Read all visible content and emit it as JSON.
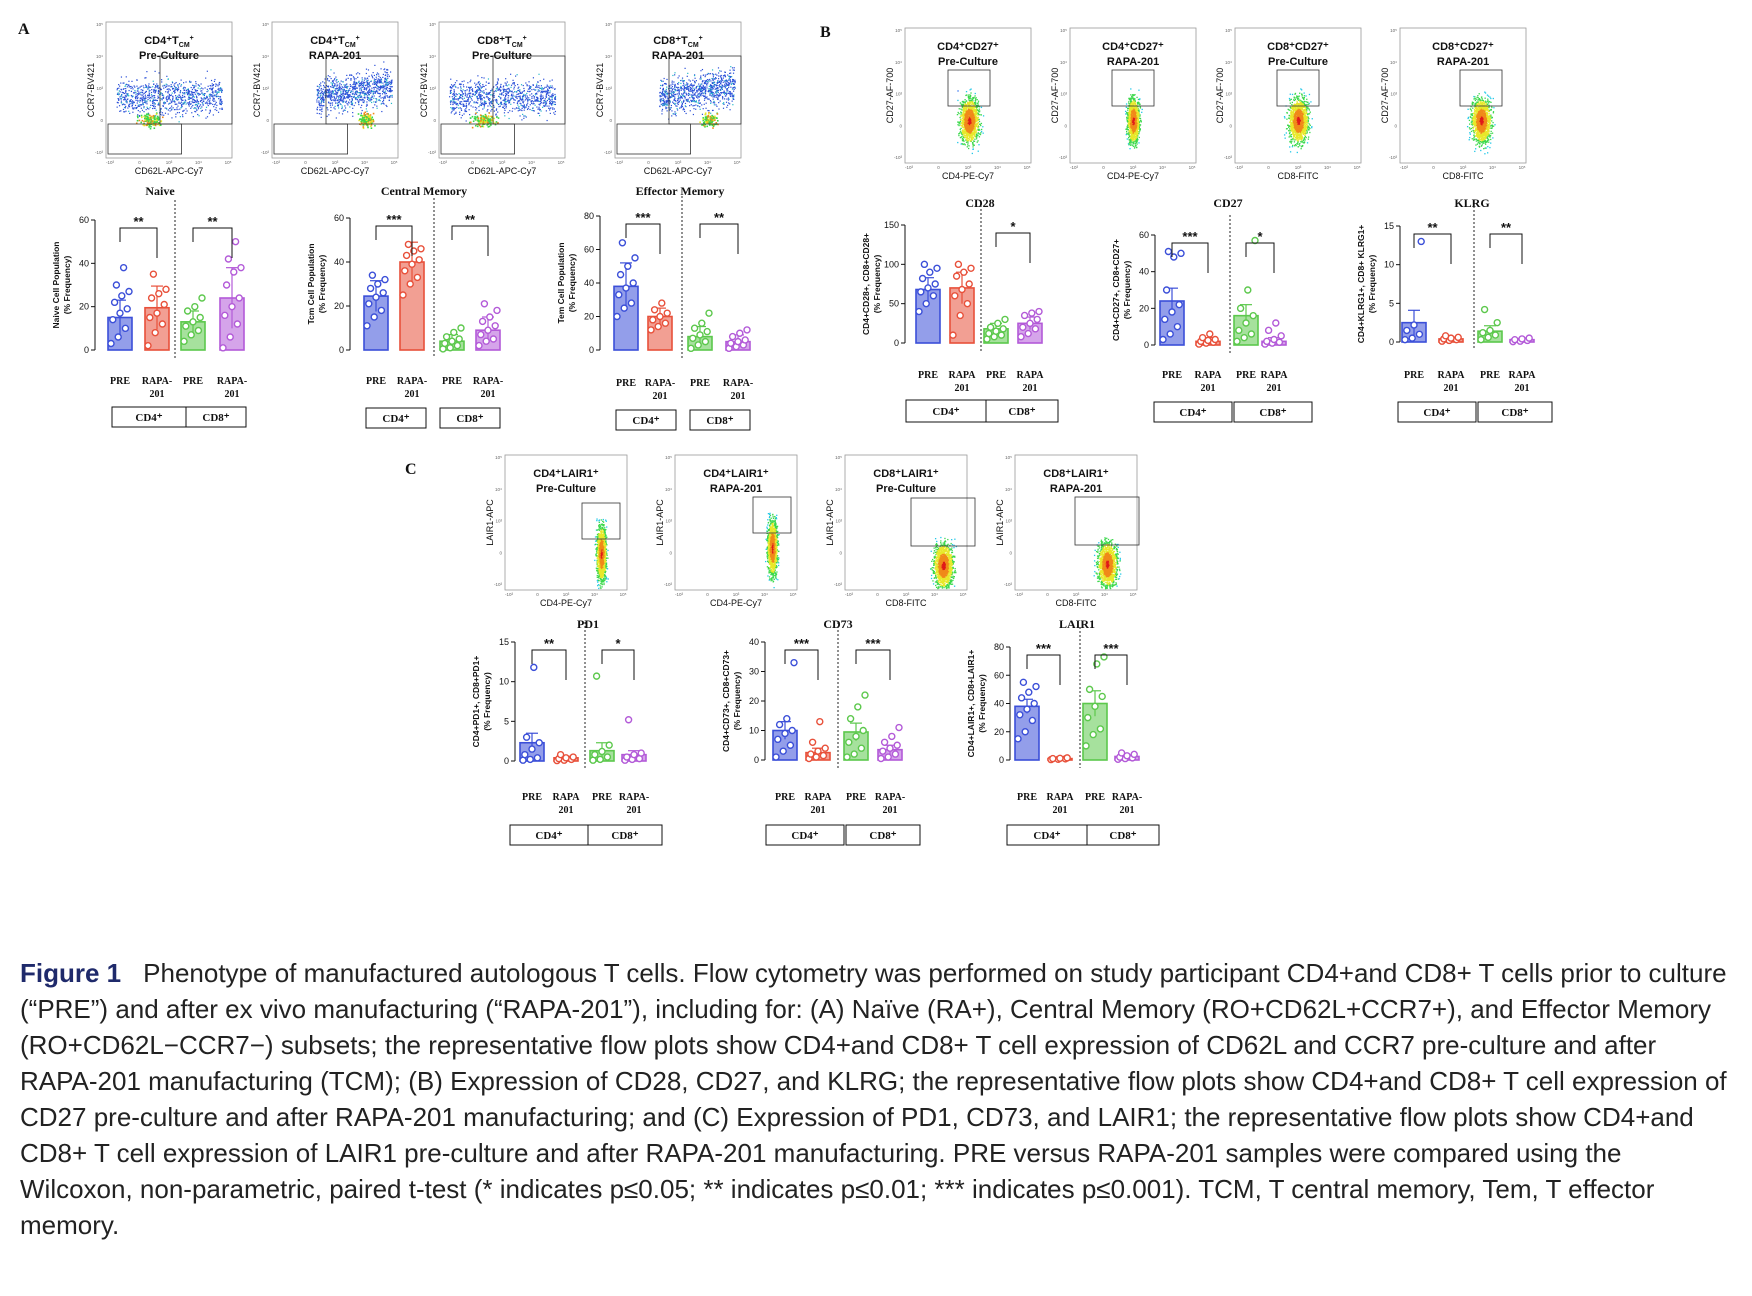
{
  "figure_label": "Figure 1",
  "caption_text": "Phenotype of manufactured autologous T cells. Flow cytometry was performed on study participant CD4+and CD8+ T cells prior to culture (“PRE”) and after ex vivo manufacturing (“RAPA-201”), including for: (A)  Naïve (RA+), Central Memory (RO+CD62L+CCR7+), and Effector Memory (RO+CD62L−CCR7−) subsets; the representative flow plots show CD4+and CD8+ T cell expression of CD62L and CCR7 pre-culture and after RAPA-201 manufacturing (TCM); (B)  Expression of CD28, CD27, and KLRG; the representative flow plots show CD4+and CD8+ T cell expression of CD27 pre-culture and after RAPA-201 manufacturing; and (C)  Expression of PD1, CD73, and LAIR1; the representative flow plots show CD4+and CD8+ T cell expression of LAIR1 pre-culture and after RAPA-201 manufacturing. PRE versus RAPA-201 samples were compared using the Wilcoxon, non-parametric, paired t-test (* indicates p≤0.05; ** indicates p≤0.01; *** indicates p≤0.001). TCM, T central memory, Tem, T effector memory.",
  "colors": {
    "cd4_pre": "#3b4fd8",
    "cd4_rapa": "#e8503a",
    "cd8_pre": "#5cc84c",
    "cd8_rapa": "#b35ad8"
  },
  "panels": [
    {
      "letter": "A",
      "flow": [
        {
          "title1": "CD4⁺T",
          "title_sub": "CM",
          "title_sup": "+",
          "title2": "Pre-Culture",
          "xlabel": "CD62L-APC-Cy7",
          "ylabel": "CCR7-BV421"
        },
        {
          "title1": "CD4⁺T",
          "title_sub": "CM",
          "title_sup": "+",
          "title2": "RAPA-201",
          "xlabel": "CD62L-APC-Cy7",
          "ylabel": "CCR7-BV421"
        },
        {
          "title1": "CD8⁺T",
          "title_sub": "CM",
          "title_sup": "+",
          "title2": "Pre-Culture",
          "xlabel": "CD62L-APC-Cy7",
          "ylabel": "CCR7-BV421"
        },
        {
          "title1": "CD8⁺T",
          "title_sub": "CM",
          "title_sup": "+",
          "title2": "RAPA-201",
          "xlabel": "CD62L-APC-Cy7",
          "ylabel": "CCR7-BV421"
        }
      ]
    },
    {
      "letter": "B",
      "flow": [
        {
          "title1": "CD4⁺CD27⁺",
          "title2": "Pre-Culture",
          "xlabel": "CD4-PE-Cy7",
          "ylabel": "CD27-AF-700"
        },
        {
          "title1": "CD4⁺CD27⁺",
          "title2": "RAPA-201",
          "xlabel": "CD4-PE-Cy7",
          "ylabel": "CD27-AF-700"
        },
        {
          "title1": "CD8⁺CD27⁺",
          "title2": "Pre-Culture",
          "xlabel": "CD8-FITC",
          "ylabel": "CD27-AF-700"
        },
        {
          "title1": "CD8⁺CD27⁺",
          "title2": "RAPA-201",
          "xlabel": "CD8-FITC",
          "ylabel": "CD27-AF-700"
        }
      ]
    },
    {
      "letter": "C",
      "flow": [
        {
          "title1": "CD4⁺LAIR1⁺",
          "title2": "Pre-Culture",
          "xlabel": "CD4-PE-Cy7",
          "ylabel": "LAIR1-APC"
        },
        {
          "title1": "CD4⁺LAIR1⁺",
          "title2": "RAPA-201",
          "xlabel": "CD4-PE-Cy7",
          "ylabel": "LAIR1-APC"
        },
        {
          "title1": "CD8⁺LAIR1⁺",
          "title2": "Pre-Culture",
          "xlabel": "CD8-FITC",
          "ylabel": "LAIR1-APC"
        },
        {
          "title1": "CD8⁺LAIR1⁺",
          "title2": "RAPA-201",
          "xlabel": "CD8-FITC",
          "ylabel": "LAIR1-APC"
        }
      ]
    }
  ],
  "flow_axis_ticks": [
    "-10³",
    "0",
    "10³",
    "10⁴",
    "10⁵"
  ],
  "group_labels": [
    "CD4⁺",
    "CD8⁺"
  ],
  "chart_data": [
    {
      "type": "bar",
      "title": "Naive",
      "ylabel": "Naive Cell Population (% Frequency)",
      "ylim": [
        0,
        60
      ],
      "yticks": [
        0,
        20,
        40,
        60
      ],
      "categories": [
        "PRE",
        "RAPA-201",
        "PRE",
        "RAPA-201"
      ],
      "values": [
        15,
        19.5,
        13,
        24
      ],
      "errors": [
        8,
        10,
        5,
        14
      ],
      "points": [
        [
          3,
          6,
          10,
          14,
          17,
          19,
          22,
          25,
          27,
          30,
          38
        ],
        [
          2,
          8,
          12,
          15,
          17,
          21,
          24,
          26,
          28,
          35
        ],
        [
          4,
          7,
          9,
          11,
          13,
          15,
          18,
          20,
          24
        ],
        [
          1,
          6,
          12,
          16,
          20,
          24,
          30,
          36,
          38,
          42,
          50
        ]
      ],
      "significance": [
        "**",
        "**"
      ]
    },
    {
      "type": "bar",
      "title": "Central Memory",
      "ylabel": "Tcm Cell Population (% Frequency)",
      "ylim": [
        0,
        60
      ],
      "yticks": [
        0,
        20,
        40,
        60
      ],
      "categories": [
        "PRE",
        "RAPA-201",
        "PRE",
        "RAPA-201"
      ],
      "values": [
        24.5,
        40,
        4,
        9
      ],
      "errors": [
        7,
        9,
        3,
        6
      ],
      "points": [
        [
          11,
          15,
          18,
          21,
          24,
          26,
          28,
          30,
          32,
          34
        ],
        [
          25,
          30,
          33,
          36,
          39,
          41,
          43,
          45,
          46,
          48
        ],
        [
          0.5,
          1,
          2,
          3,
          4,
          5,
          6,
          8,
          10
        ],
        [
          2,
          4,
          5,
          7,
          9,
          11,
          13,
          15,
          18,
          21
        ]
      ],
      "significance": [
        "***",
        "**"
      ]
    },
    {
      "type": "bar",
      "title": "Effector Memory",
      "ylabel": "Tem Cell Population (% Frequency)",
      "ylim": [
        0,
        80
      ],
      "yticks": [
        0,
        20,
        40,
        60,
        80
      ],
      "categories": [
        "PRE",
        "RAPA-201",
        "PRE",
        "RAPA-201"
      ],
      "values": [
        38,
        20,
        8,
        5
      ],
      "errors": [
        14,
        5,
        6,
        4
      ],
      "points": [
        [
          20,
          25,
          28,
          33,
          37,
          40,
          45,
          50,
          55,
          64
        ],
        [
          12,
          14,
          16,
          18,
          20,
          22,
          24,
          28
        ],
        [
          1,
          3,
          5,
          7,
          9,
          11,
          13,
          16,
          22
        ],
        [
          1,
          2,
          3,
          4,
          5,
          6,
          8,
          10,
          12
        ]
      ],
      "significance": [
        "***",
        "**"
      ]
    },
    {
      "type": "bar",
      "title": "CD28",
      "ylabel": "CD4+CD28+, CD8+CD28+ (% Frequency)",
      "ylim": [
        0,
        150
      ],
      "yticks": [
        0,
        50,
        100,
        150
      ],
      "categories": [
        "PRE",
        "RAPA 201",
        "PRE",
        "RAPA 201"
      ],
      "values": [
        68,
        70,
        18,
        25
      ],
      "errors": [
        15,
        20,
        7,
        8
      ],
      "points": [
        [
          40,
          50,
          60,
          65,
          70,
          75,
          82,
          90,
          95,
          100
        ],
        [
          10,
          35,
          50,
          60,
          68,
          75,
          85,
          90,
          95,
          100
        ],
        [
          5,
          8,
          10,
          12,
          15,
          18,
          20,
          25,
          30
        ],
        [
          8,
          12,
          18,
          20,
          25,
          30,
          35,
          38,
          40
        ]
      ],
      "significance": [
        "",
        "*"
      ]
    },
    {
      "type": "bar",
      "title": "CD27",
      "ylabel": "CD4+CD27+, CD8+CD27+ (% Frequency)",
      "ylim": [
        0,
        60
      ],
      "yticks": [
        0,
        20,
        40,
        60
      ],
      "categories": [
        "PRE",
        "RAPA 201",
        "PRE",
        "RAPA 201"
      ],
      "values": [
        24,
        2,
        16,
        2
      ],
      "errors": [
        7,
        2,
        6,
        2
      ],
      "points": [
        [
          3,
          6,
          10,
          14,
          18,
          22,
          30,
          48,
          50,
          51
        ],
        [
          0.5,
          1,
          1.5,
          2,
          2.5,
          3,
          4,
          6
        ],
        [
          2,
          4,
          6,
          8,
          12,
          16,
          20,
          30,
          57
        ],
        [
          0.5,
          1,
          1.5,
          2,
          3,
          5,
          8,
          12
        ]
      ],
      "significance": [
        "***",
        "*"
      ]
    },
    {
      "type": "bar",
      "title": "KLRG",
      "ylabel": "CD4+KLRG1+, CD8+ KLRG1+ (% Frequency)",
      "ylim": [
        0,
        15
      ],
      "yticks": [
        0,
        5,
        10,
        15
      ],
      "categories": [
        "PRE",
        "RAPA 201",
        "PRE",
        "RAPA 201"
      ],
      "values": [
        2.5,
        0.4,
        1.4,
        0.3
      ],
      "errors": [
        1.6,
        0.2,
        0.7,
        0.15
      ],
      "points": [
        [
          0.3,
          0.5,
          1,
          1.5,
          2.2,
          13
        ],
        [
          0.1,
          0.2,
          0.3,
          0.4,
          0.5,
          0.6,
          0.8
        ],
        [
          0.3,
          0.6,
          0.9,
          1.2,
          1.5,
          2.5,
          4.2
        ],
        [
          0.05,
          0.1,
          0.2,
          0.3,
          0.4,
          0.5
        ]
      ],
      "significance": [
        "**",
        "**"
      ]
    },
    {
      "type": "bar",
      "title": "PD1",
      "ylabel": "CD4+PD1+, CD8+PD1+ (% Frequency)",
      "ylim": [
        0,
        15
      ],
      "yticks": [
        0,
        5,
        10,
        15
      ],
      "categories": [
        "PRE",
        "RAPA 201",
        "PRE",
        "RAPA-201"
      ],
      "values": [
        2.3,
        0.4,
        1.3,
        0.8
      ],
      "errors": [
        1.2,
        0.2,
        1.0,
        0.5
      ],
      "points": [
        [
          0.1,
          0.2,
          0.4,
          0.8,
          1.5,
          2.3,
          3,
          11.8
        ],
        [
          0.05,
          0.1,
          0.2,
          0.3,
          0.4,
          0.5,
          0.8
        ],
        [
          0.1,
          0.2,
          0.5,
          0.8,
          1.2,
          2,
          10.7
        ],
        [
          0.1,
          0.2,
          0.3,
          0.5,
          0.8,
          1,
          5.2
        ]
      ],
      "significance": [
        "**",
        "*"
      ]
    },
    {
      "type": "bar",
      "title": "CD73",
      "ylabel": "CD4+CD73+, CD8+CD73+ (% Frequency)",
      "ylim": [
        0,
        40
      ],
      "yticks": [
        0,
        10,
        20,
        30,
        40
      ],
      "categories": [
        "PRE",
        "RAPA 201",
        "PRE",
        "RAPA-201"
      ],
      "values": [
        10,
        2.5,
        9.5,
        3.5
      ],
      "errors": [
        3,
        1.5,
        3,
        1.5
      ],
      "points": [
        [
          1,
          3,
          5,
          7,
          9,
          10,
          12,
          14,
          33
        ],
        [
          0.5,
          1,
          1.5,
          2,
          3,
          4,
          6,
          13
        ],
        [
          1,
          2,
          4,
          6,
          8,
          10,
          14,
          18,
          22
        ],
        [
          0.5,
          1,
          2,
          3,
          4,
          5,
          6,
          8,
          11
        ]
      ],
      "significance": [
        "***",
        "***"
      ]
    },
    {
      "type": "bar",
      "title": "LAIR1",
      "ylabel": "CD4+LAIR1+, CD8+LAIR1+ (% Frequency)",
      "ylim": [
        0,
        80
      ],
      "yticks": [
        0,
        20,
        40,
        60,
        80
      ],
      "categories": [
        "PRE",
        "RAPA 201",
        "PRE",
        "RAPA-201"
      ],
      "values": [
        38,
        1,
        40,
        2.5
      ],
      "errors": [
        5,
        0.5,
        9,
        1
      ],
      "points": [
        [
          15,
          20,
          28,
          32,
          36,
          40,
          44,
          48,
          52,
          55
        ],
        [
          0.3,
          0.5,
          0.8,
          1,
          1.2,
          1.5
        ],
        [
          10,
          18,
          22,
          30,
          38,
          45,
          50,
          68,
          73
        ],
        [
          0.5,
          1,
          1.5,
          2,
          3,
          4,
          5
        ]
      ],
      "significance": [
        "***",
        "***"
      ]
    }
  ]
}
